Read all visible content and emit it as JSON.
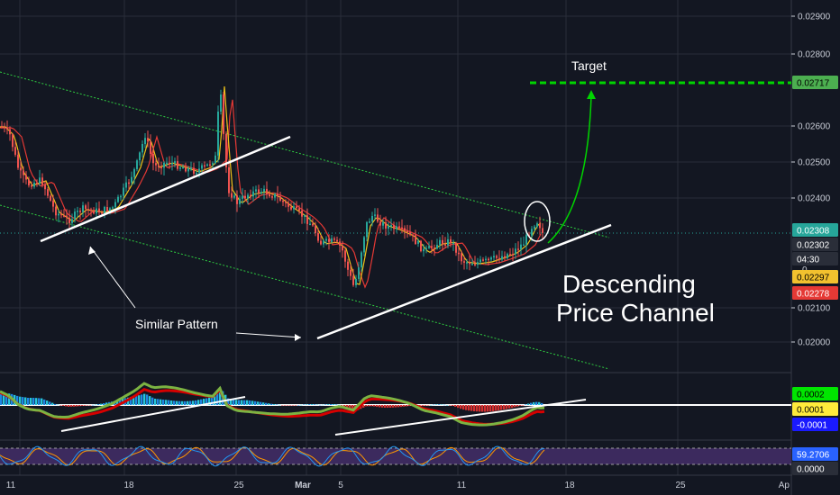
{
  "chart_data": {
    "type": "candlestick",
    "x_ticks": [
      "11",
      "18",
      "25",
      "Mar",
      "5",
      "11",
      "18",
      "25",
      "Ap"
    ],
    "price_ticks": [
      "0.02900",
      "0.02800",
      "0.02600",
      "0.02500",
      "0.02400",
      "0.02100",
      "0.02000"
    ],
    "price_badges": [
      {
        "label": "0.02717",
        "bg": "#4caf50",
        "fg": "#000000"
      },
      {
        "label": "0.02308",
        "bg": "#26a69a",
        "fg": "#ffffff"
      },
      {
        "label": "0.02302",
        "bg": "#2a2e39",
        "fg": "#ffffff"
      },
      {
        "label": "04:30",
        "bg": "#2a2e39",
        "fg": "#ffffff"
      },
      {
        "label": "0.02297",
        "bg": "#f2c12e",
        "fg": "#000000"
      },
      {
        "label": "0.02278",
        "bg": "#e53935",
        "fg": "#ffffff"
      }
    ],
    "zero_label": "0",
    "macd_badges": [
      {
        "label": "0.0002",
        "bg": "#00e600",
        "fg": "#000000"
      },
      {
        "label": "0.0001",
        "bg": "#ffeb3b",
        "fg": "#000000"
      },
      {
        "label": "-0.0001",
        "bg": "#1a1aff",
        "fg": "#ffffff"
      }
    ],
    "stoch_badges": [
      {
        "label": "59.2706",
        "bg": "#2962ff",
        "fg": "#ffffff"
      },
      {
        "label": "0.0000",
        "bg": "#2a2e39",
        "fg": "#ffffff"
      }
    ],
    "annotations": {
      "target": "Target",
      "similar": "Similar Pattern",
      "channel_line1": "Descending",
      "channel_line2": "Price Channel"
    },
    "colors": {
      "background": "#131722",
      "grid": "#2a2e39",
      "up": "#26a69a",
      "down": "#ef5350",
      "channel": "#2ecc40",
      "target": "#00d400",
      "ema_fast": "#f0c419",
      "ema_slow": "#e53935",
      "stoch_band": "#3c2a5e"
    }
  }
}
